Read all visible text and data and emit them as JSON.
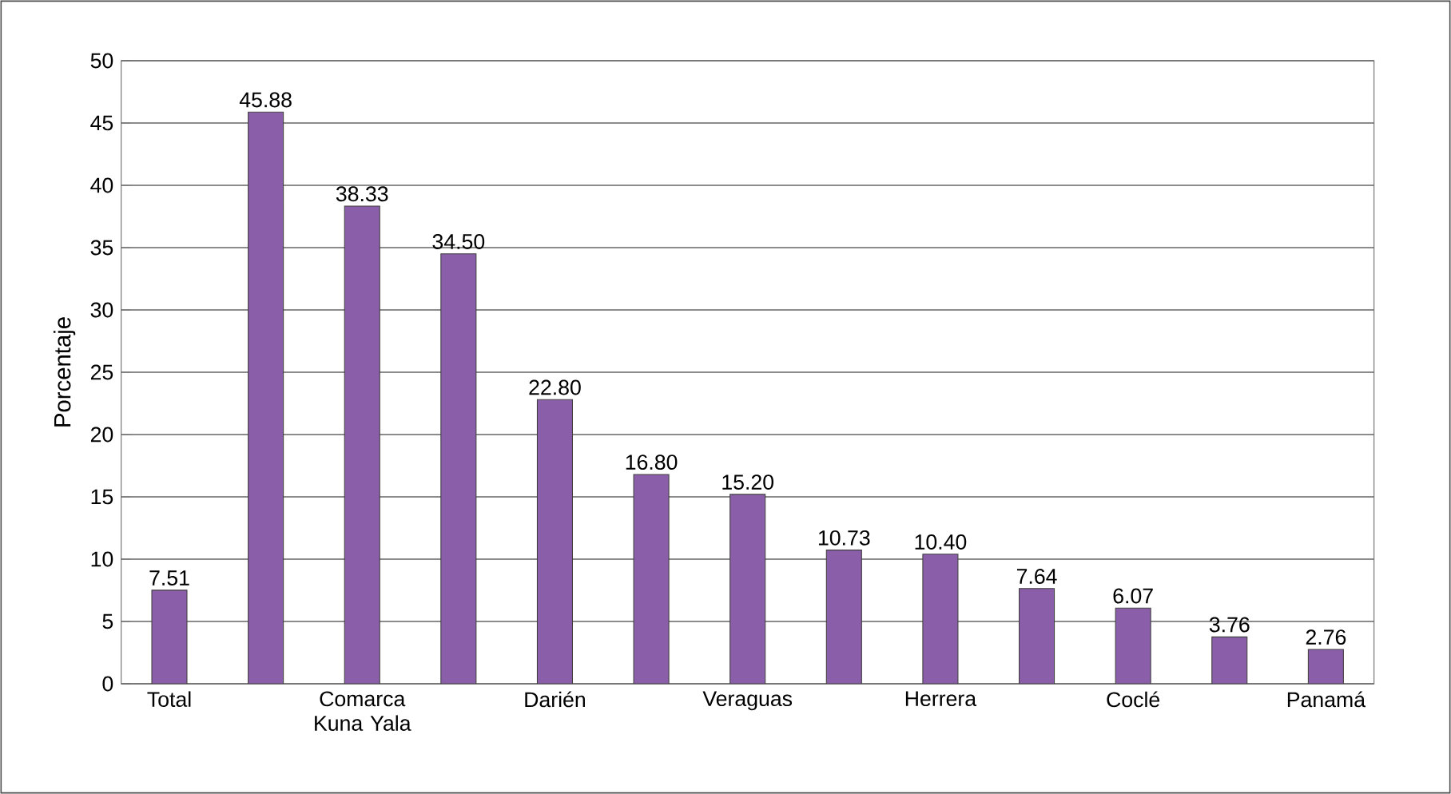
{
  "chart_data": {
    "type": "bar",
    "ylabel": "Porcentaje",
    "categories": [
      "Total",
      null,
      "Comarca Kuna Yala",
      null,
      "Darién",
      null,
      "Veraguas",
      null,
      "Herrera",
      null,
      "Coclé",
      null,
      "Panamá"
    ],
    "values": [
      7.51,
      45.88,
      38.33,
      34.5,
      22.8,
      16.8,
      15.2,
      10.73,
      10.4,
      7.64,
      6.07,
      3.76,
      2.76
    ],
    "value_labels": [
      "7.51",
      "45.88",
      "38.33",
      "34.50",
      "22.80",
      "16.80",
      "15.20",
      "10.73",
      "10.40",
      "7.64",
      "6.07",
      "3.76",
      "2.76"
    ],
    "color": "#8a5ea8",
    "ylim": [
      0,
      50
    ],
    "yticks": [
      0,
      5,
      10,
      15,
      20,
      25,
      30,
      35,
      40,
      45,
      50
    ],
    "grid": "y"
  }
}
